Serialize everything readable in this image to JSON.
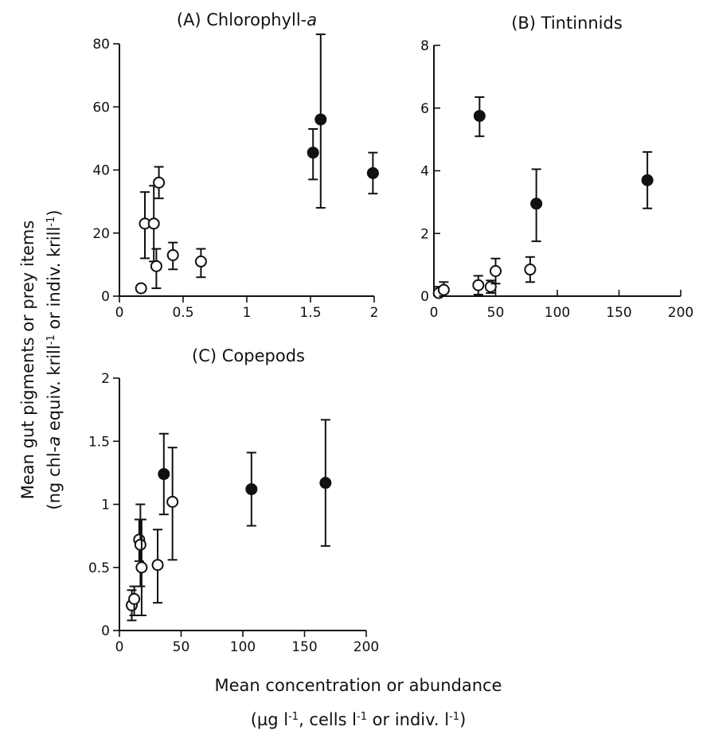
{
  "figure": {
    "ylabel_line1": "Mean gut pigments or prey items",
    "ylabel_line2_a": "(ng chl-",
    "ylabel_line2_b": "a",
    "ylabel_line2_c": " equiv. krill",
    "ylabel_line2_d": "-1",
    "ylabel_line2_e": " or indiv. krill",
    "ylabel_line2_f": "-1",
    "ylabel_line2_g": ")",
    "xlabel_line1": "Mean concentration or abundance",
    "xlabel_line2_a": "(µg l",
    "xlabel_line2_b": "-1",
    "xlabel_line2_c": ", cells l",
    "xlabel_line2_d": "-1",
    "xlabel_line2_e": " or indiv. l",
    "xlabel_line2_f": "-1",
    "xlabel_line2_g": ")"
  },
  "chart_data": [
    {
      "type": "scatter",
      "title": "(A) Chlorophyll-",
      "title_italic": "a",
      "xlim": [
        0,
        2
      ],
      "ylim": [
        0,
        80
      ],
      "xticks": [
        0,
        0.5,
        1,
        1.5,
        2
      ],
      "xtick_labels": [
        "0",
        "0.5",
        "1",
        "1.5",
        "2"
      ],
      "yticks": [
        0,
        20,
        40,
        60,
        80
      ],
      "ytick_labels": [
        "0",
        "20",
        "40",
        "60",
        "80"
      ],
      "series": [
        {
          "marker": "open-circle",
          "points": [
            {
              "x": 0.17,
              "y": 2.5
            },
            {
              "x": 0.2,
              "y": 23,
              "lo": 12,
              "hi": 33
            },
            {
              "x": 0.27,
              "y": 23,
              "lo": 11,
              "hi": 35
            },
            {
              "x": 0.29,
              "y": 9.5,
              "lo": 2.5,
              "hi": 15
            },
            {
              "x": 0.31,
              "y": 36,
              "lo": 31,
              "hi": 41
            },
            {
              "x": 0.42,
              "y": 13,
              "lo": 8.5,
              "hi": 17
            },
            {
              "x": 0.64,
              "y": 11,
              "lo": 6,
              "hi": 15
            }
          ]
        },
        {
          "marker": "filled-circle",
          "points": [
            {
              "x": 1.52,
              "y": 45.5,
              "lo": 37,
              "hi": 53
            },
            {
              "x": 1.58,
              "y": 56,
              "lo": 28,
              "hi": 83
            },
            {
              "x": 1.99,
              "y": 39,
              "lo": 32.5,
              "hi": 45.5
            }
          ]
        }
      ]
    },
    {
      "type": "scatter",
      "title": "(B) Tintinnids",
      "title_italic": "",
      "xlim": [
        0,
        200
      ],
      "ylim": [
        0,
        8
      ],
      "xticks": [
        0,
        50,
        100,
        150,
        200
      ],
      "xtick_labels": [
        "0",
        "50",
        "100",
        "150",
        "200"
      ],
      "yticks": [
        0,
        2,
        4,
        6,
        8
      ],
      "ytick_labels": [
        "0",
        "2",
        "4",
        "6",
        "8"
      ],
      "series": [
        {
          "marker": "open-circle",
          "points": [
            {
              "x": 4,
              "y": 0.1,
              "lo": 0,
              "hi": 0.3
            },
            {
              "x": 8,
              "y": 0.2,
              "lo": 0,
              "hi": 0.45
            },
            {
              "x": 36,
              "y": 0.35,
              "lo": 0.05,
              "hi": 0.65
            },
            {
              "x": 46,
              "y": 0.3,
              "lo": 0.1,
              "hi": 0.5
            },
            {
              "x": 50,
              "y": 0.8,
              "lo": 0.4,
              "hi": 1.2
            },
            {
              "x": 78,
              "y": 0.85,
              "lo": 0.45,
              "hi": 1.25
            }
          ]
        },
        {
          "marker": "filled-circle",
          "points": [
            {
              "x": 37,
              "y": 5.75,
              "lo": 5.1,
              "hi": 6.35
            },
            {
              "x": 83,
              "y": 2.95,
              "lo": 1.75,
              "hi": 4.05
            },
            {
              "x": 173,
              "y": 3.7,
              "lo": 2.8,
              "hi": 4.6
            }
          ]
        }
      ]
    },
    {
      "type": "scatter",
      "title": "(C) Copepods",
      "title_italic": "",
      "xlim": [
        0,
        200
      ],
      "ylim": [
        0,
        2
      ],
      "xticks": [
        0,
        50,
        100,
        150,
        200
      ],
      "xtick_labels": [
        "0",
        "50",
        "100",
        "150",
        "200"
      ],
      "yticks": [
        0,
        0.5,
        1,
        1.5,
        2
      ],
      "ytick_labels": [
        "0",
        "0.5",
        "1",
        "1.5",
        "2"
      ],
      "series": [
        {
          "marker": "open-circle",
          "points": [
            {
              "x": 10,
              "y": 0.2,
              "lo": 0.08,
              "hi": 0.32
            },
            {
              "x": 12,
              "y": 0.25,
              "lo": 0.12,
              "hi": 0.35
            },
            {
              "x": 16,
              "y": 0.72,
              "lo": 0.55,
              "hi": 0.88
            },
            {
              "x": 17,
              "y": 0.68,
              "lo": 0.35,
              "hi": 1.0
            },
            {
              "x": 18,
              "y": 0.5,
              "lo": 0.12,
              "hi": 0.88
            },
            {
              "x": 31,
              "y": 0.52,
              "lo": 0.22,
              "hi": 0.8
            },
            {
              "x": 43,
              "y": 1.02,
              "lo": 0.56,
              "hi": 1.45
            }
          ]
        },
        {
          "marker": "filled-circle",
          "points": [
            {
              "x": 36,
              "y": 1.24,
              "lo": 0.92,
              "hi": 1.56
            },
            {
              "x": 107,
              "y": 1.12,
              "lo": 0.83,
              "hi": 1.41
            },
            {
              "x": 167,
              "y": 1.17,
              "lo": 0.67,
              "hi": 1.67
            }
          ]
        }
      ]
    }
  ]
}
